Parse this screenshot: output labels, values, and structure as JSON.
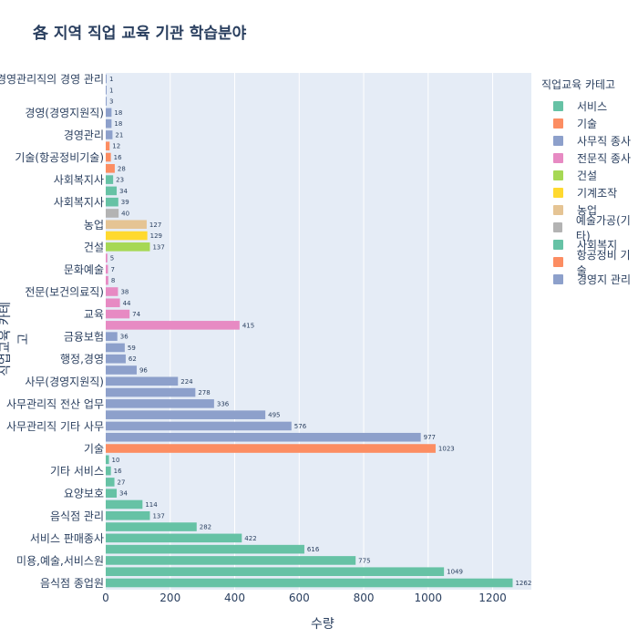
{
  "chart_data": {
    "type": "bar",
    "orientation": "horizontal",
    "title": "各 지역 직업 교육 기관 학습분야",
    "xlabel": "수량",
    "ylabel": "직업교육 카테고",
    "xlim": [
      0,
      1320
    ],
    "xticks": [
      0,
      200,
      400,
      600,
      800,
      1000,
      1200
    ],
    "grid": true,
    "legend": {
      "title": "직업교육 카테고",
      "position": "right"
    },
    "colors": {
      "teal": "#66c2a5",
      "orange": "#fc8d62",
      "blue": "#8da0cb",
      "pink": "#e78ac3",
      "lime": "#a6d854",
      "yellow": "#ffd92f",
      "tan": "#e5c494",
      "gray": "#b3b3b3"
    },
    "legend_items": [
      {
        "label": "서비스",
        "color": "#66c2a5"
      },
      {
        "label": "기술",
        "color": "#fc8d62"
      },
      {
        "label": "사무직 종사",
        "color": "#8da0cb"
      },
      {
        "label": "전문직 종사",
        "color": "#e78ac3"
      },
      {
        "label": "건설",
        "color": "#a6d854"
      },
      {
        "label": "기계조작",
        "color": "#ffd92f"
      },
      {
        "label": "농업",
        "color": "#e5c494"
      },
      {
        "label": "예술가공(기타)",
        "color": "#b3b3b3"
      },
      {
        "label": "사회복지",
        "color": "#66c2a5"
      },
      {
        "label": "항공정비 기술",
        "color": "#fc8d62"
      },
      {
        "label": "경영지 관리",
        "color": "#8da0cb"
      }
    ],
    "bars": [
      {
        "label": "음식점 종업원",
        "value": 1262,
        "color": "#66c2a5"
      },
      {
        "label": "",
        "value": 1049,
        "color": "#66c2a5"
      },
      {
        "label": "미용,예술,서비스원",
        "value": 775,
        "color": "#66c2a5"
      },
      {
        "label": "",
        "value": 616,
        "color": "#66c2a5"
      },
      {
        "label": "서비스 판매종사",
        "value": 422,
        "color": "#66c2a5"
      },
      {
        "label": "",
        "value": 282,
        "color": "#66c2a5"
      },
      {
        "label": "음식점 관리",
        "value": 137,
        "color": "#66c2a5"
      },
      {
        "label": "",
        "value": 114,
        "color": "#66c2a5"
      },
      {
        "label": "요양보호",
        "value": 34,
        "color": "#66c2a5"
      },
      {
        "label": "",
        "value": 27,
        "color": "#66c2a5"
      },
      {
        "label": "기타 서비스",
        "value": 16,
        "color": "#66c2a5"
      },
      {
        "label": "",
        "value": 10,
        "color": "#66c2a5"
      },
      {
        "label": "기술",
        "value": 1023,
        "color": "#fc8d62"
      },
      {
        "label": "",
        "value": 977,
        "color": "#8da0cb"
      },
      {
        "label": "사무관리직 기타 사무",
        "value": 576,
        "color": "#8da0cb"
      },
      {
        "label": "",
        "value": 495,
        "color": "#8da0cb"
      },
      {
        "label": "사무관리직 전산 업무",
        "value": 336,
        "color": "#8da0cb"
      },
      {
        "label": "",
        "value": 278,
        "color": "#8da0cb"
      },
      {
        "label": "사무(경영지원직)",
        "value": 224,
        "color": "#8da0cb"
      },
      {
        "label": "",
        "value": 96,
        "color": "#8da0cb"
      },
      {
        "label": "행정,경영",
        "value": 62,
        "color": "#8da0cb"
      },
      {
        "label": "",
        "value": 59,
        "color": "#8da0cb"
      },
      {
        "label": "금융보험",
        "value": 36,
        "color": "#8da0cb"
      },
      {
        "label": "",
        "value": 415,
        "color": "#e78ac3"
      },
      {
        "label": "교육",
        "value": 74,
        "color": "#e78ac3"
      },
      {
        "label": "",
        "value": 44,
        "color": "#e78ac3"
      },
      {
        "label": "전문(보건의료직)",
        "value": 38,
        "color": "#e78ac3"
      },
      {
        "label": "",
        "value": 8,
        "color": "#e78ac3"
      },
      {
        "label": "문화예술",
        "value": 7,
        "color": "#e78ac3"
      },
      {
        "label": "",
        "value": 5,
        "color": "#e78ac3"
      },
      {
        "label": "건설",
        "value": 137,
        "color": "#a6d854"
      },
      {
        "label": "",
        "value": 129,
        "color": "#ffd92f"
      },
      {
        "label": "농업",
        "value": 127,
        "color": "#e5c494"
      },
      {
        "label": "",
        "value": 40,
        "color": "#b3b3b3"
      },
      {
        "label": "사회복지사",
        "value": 39,
        "color": "#66c2a5"
      },
      {
        "label": "",
        "value": 34,
        "color": "#66c2a5"
      },
      {
        "label": "사회복지사",
        "value": 23,
        "color": "#66c2a5"
      },
      {
        "label": "",
        "value": 28,
        "color": "#fc8d62"
      },
      {
        "label": "기술(항공정비기술)",
        "value": 16,
        "color": "#fc8d62"
      },
      {
        "label": "",
        "value": 12,
        "color": "#fc8d62"
      },
      {
        "label": "경영관리",
        "value": 21,
        "color": "#8da0cb"
      },
      {
        "label": "",
        "value": 18,
        "color": "#8da0cb"
      },
      {
        "label": "경영(경영지원직)",
        "value": 18,
        "color": "#8da0cb"
      },
      {
        "label": "",
        "value": 3,
        "color": "#8da0cb"
      },
      {
        "label": "",
        "value": 1,
        "color": "#8da0cb"
      },
      {
        "label": "경영관리직의 경영 관리",
        "value": 1,
        "color": "#8da0cb"
      }
    ]
  }
}
